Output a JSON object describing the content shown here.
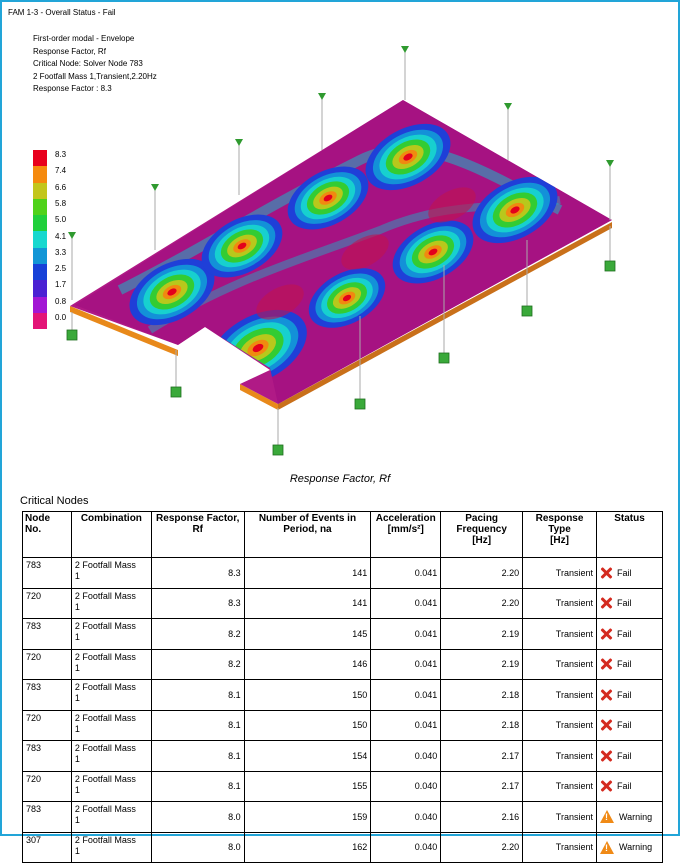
{
  "header": {
    "title": "FAM 1-3 - Overall Status - Fail"
  },
  "info": {
    "lines": [
      "First-order modal - Envelope",
      "Response Factor, Rf",
      "Critical Node: Solver Node 783",
      "2 Footfall Mass 1,Transient,2.20Hz",
      "Response Factor : 8.3"
    ]
  },
  "legend": {
    "labels": [
      "8.3",
      "7.4",
      "6.6",
      "5.8",
      "5.0",
      "4.1",
      "3.3",
      "2.5",
      "1.7",
      "0.8",
      "0.0"
    ],
    "colors": [
      "#e8001c",
      "#f58a0e",
      "#c3c61c",
      "#4fd21a",
      "#1fd03b",
      "#17d8cf",
      "#1296d6",
      "#1741d8",
      "#4a21d3",
      "#a217d4",
      "#e31577"
    ]
  },
  "model": {
    "caption": "Response Factor, Rf"
  },
  "table": {
    "section_title": "Critical Nodes",
    "headers": {
      "node": [
        "Node",
        "No."
      ],
      "combination": "Combination",
      "response_factor": [
        "Response Factor,",
        "Rf"
      ],
      "events": [
        "Number of Events in",
        "Period, na"
      ],
      "acceleration": [
        "Acceleration",
        "[mm/s²]"
      ],
      "pacing": [
        "Pacing",
        "Frequency",
        "[Hz]"
      ],
      "response_type": [
        "Response",
        "Type",
        "[Hz]"
      ],
      "status": "Status"
    },
    "rows": [
      {
        "node": "783",
        "comb1": "2 Footfall Mass",
        "comb2": "1",
        "rf": "8.3",
        "events": "141",
        "acc": "0.041",
        "freq": "2.20",
        "type": "Transient",
        "status": "Fail"
      },
      {
        "node": "720",
        "comb1": "2 Footfall Mass",
        "comb2": "1",
        "rf": "8.3",
        "events": "141",
        "acc": "0.041",
        "freq": "2.20",
        "type": "Transient",
        "status": "Fail"
      },
      {
        "node": "783",
        "comb1": "2 Footfall Mass",
        "comb2": "1",
        "rf": "8.2",
        "events": "145",
        "acc": "0.041",
        "freq": "2.19",
        "type": "Transient",
        "status": "Fail"
      },
      {
        "node": "720",
        "comb1": "2 Footfall Mass",
        "comb2": "1",
        "rf": "8.2",
        "events": "146",
        "acc": "0.041",
        "freq": "2.19",
        "type": "Transient",
        "status": "Fail"
      },
      {
        "node": "783",
        "comb1": "2 Footfall Mass",
        "comb2": "1",
        "rf": "8.1",
        "events": "150",
        "acc": "0.041",
        "freq": "2.18",
        "type": "Transient",
        "status": "Fail"
      },
      {
        "node": "720",
        "comb1": "2 Footfall Mass",
        "comb2": "1",
        "rf": "8.1",
        "events": "150",
        "acc": "0.041",
        "freq": "2.18",
        "type": "Transient",
        "status": "Fail"
      },
      {
        "node": "783",
        "comb1": "2 Footfall Mass",
        "comb2": "1",
        "rf": "8.1",
        "events": "154",
        "acc": "0.040",
        "freq": "2.17",
        "type": "Transient",
        "status": "Fail"
      },
      {
        "node": "720",
        "comb1": "2 Footfall Mass",
        "comb2": "1",
        "rf": "8.1",
        "events": "155",
        "acc": "0.040",
        "freq": "2.17",
        "type": "Transient",
        "status": "Fail"
      },
      {
        "node": "783",
        "comb1": "2 Footfall Mass",
        "comb2": "1",
        "rf": "8.0",
        "events": "159",
        "acc": "0.040",
        "freq": "2.16",
        "type": "Transient",
        "status": "Warning"
      },
      {
        "node": "307",
        "comb1": "2 Footfall Mass",
        "comb2": "1",
        "rf": "8.0",
        "events": "162",
        "acc": "0.040",
        "freq": "2.20",
        "type": "Transient",
        "status": "Warning"
      }
    ]
  },
  "icons": {
    "fail": "fail-x-icon",
    "warning": "warning-triangle-icon",
    "support": "support-node-icon"
  }
}
